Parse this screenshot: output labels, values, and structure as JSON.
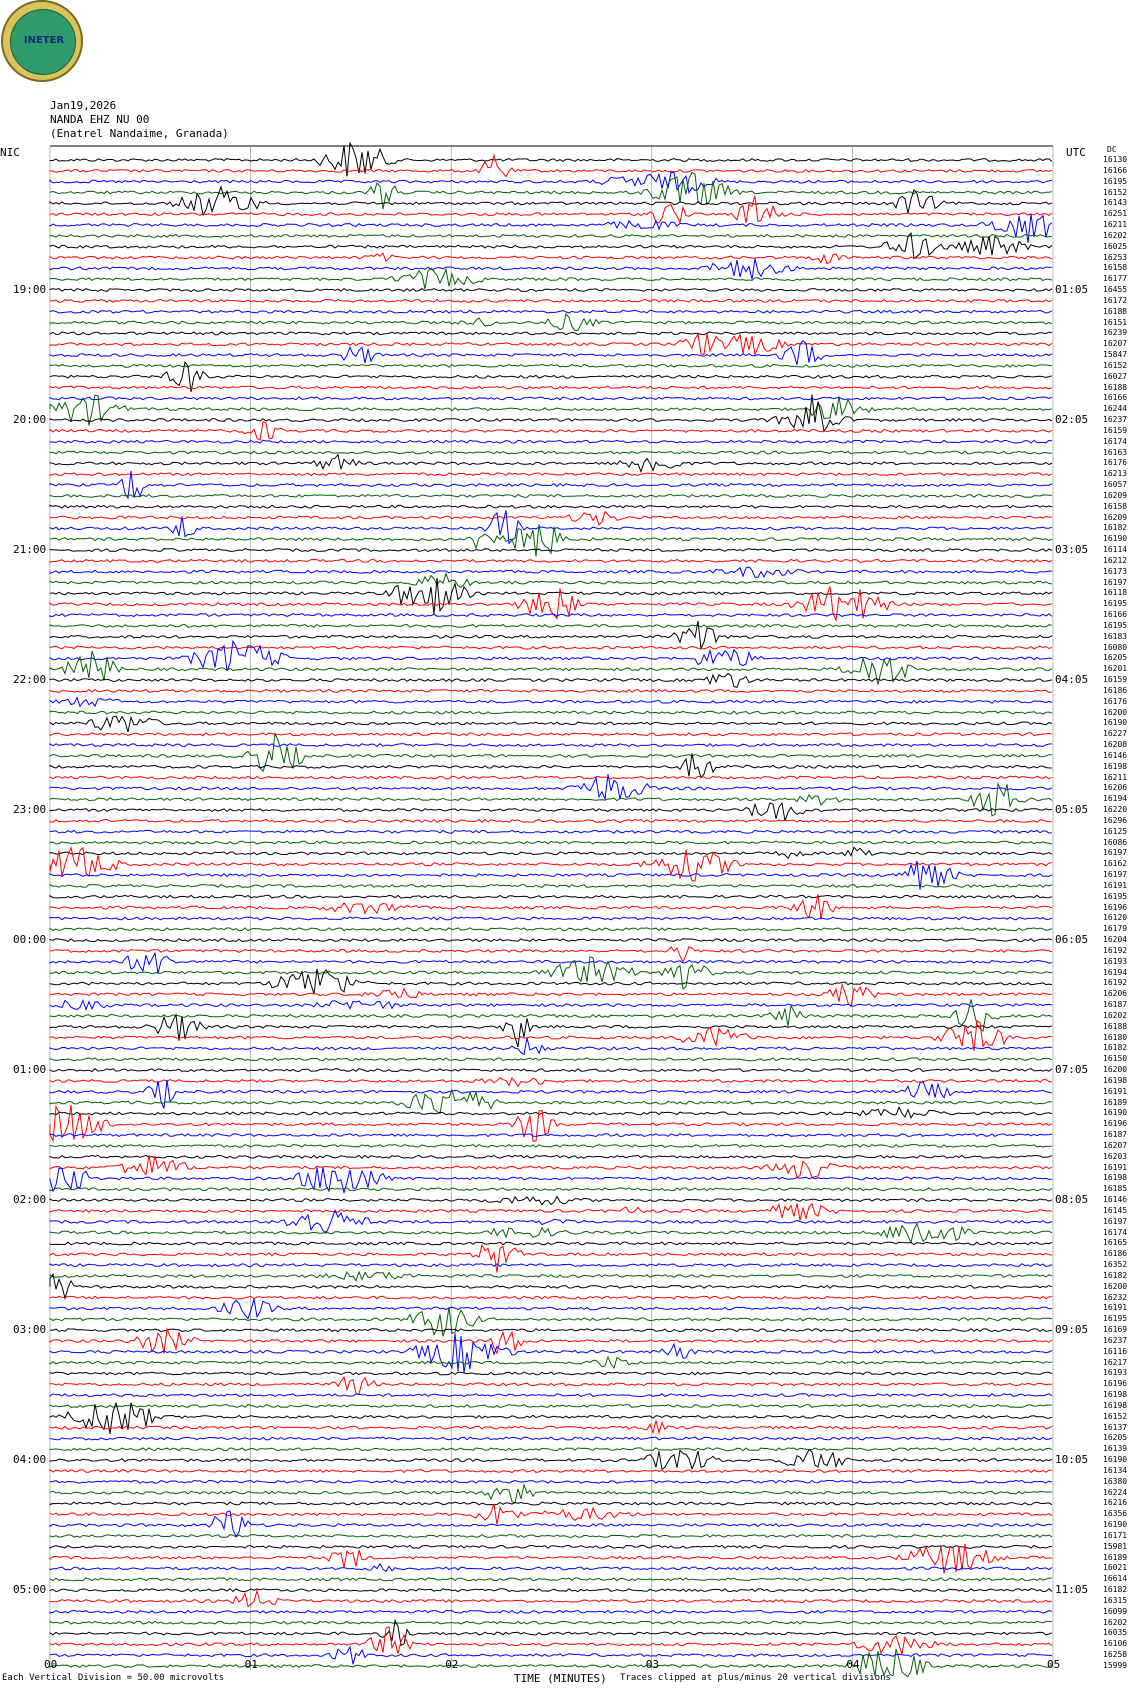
{
  "header": {
    "date": "Jan19,2026",
    "station": "NANDA EHZ NU 00",
    "location": "(Enatrel Nandaime, Granada)",
    "left_tz": "NIC",
    "right_tz": "UTC",
    "dc_label": "DC"
  },
  "logo": {
    "text": "INETER"
  },
  "left_times": [
    "19:00",
    "20:00",
    "21:00",
    "22:00",
    "23:00",
    "00:00",
    "01:00",
    "02:00",
    "03:00",
    "04:00",
    "05:00"
  ],
  "right_times": [
    "01:05",
    "02:05",
    "03:05",
    "04:05",
    "05:05",
    "06:05",
    "07:05",
    "08:05",
    "09:05",
    "10:05",
    "11:05"
  ],
  "dc_values": [
    "16130",
    "16166",
    "16195",
    "16152",
    "16143",
    "16251",
    "16211",
    "16202",
    "16025",
    "16253",
    "16158",
    "16177",
    "16455",
    "16172",
    "16188",
    "16151",
    "16239",
    "16207",
    "15847",
    "16152",
    "16027",
    "16188",
    "16166",
    "16244",
    "16237",
    "16159",
    "16174",
    "16163",
    "16176",
    "16213",
    "16057",
    "16209",
    "16158",
    "16209",
    "16182",
    "16190",
    "16114",
    "16212",
    "16173",
    "16197",
    "16118",
    "16195",
    "16166",
    "16195",
    "16183",
    "16080",
    "16205",
    "16201",
    "16159",
    "16186",
    "16176",
    "16200",
    "16190",
    "16227",
    "16208",
    "16146",
    "16198",
    "16211",
    "16206",
    "16194",
    "16220",
    "16296",
    "16125",
    "16086",
    "16197",
    "16162",
    "16197",
    "16191",
    "16195",
    "16196",
    "16120",
    "16179",
    "16204",
    "16192",
    "16193",
    "16194",
    "16192",
    "16206",
    "16187",
    "16202",
    "16188",
    "16180",
    "16182",
    "16150",
    "16200",
    "16198",
    "16191",
    "16189",
    "16190",
    "16196",
    "16187",
    "16207",
    "16203",
    "16191",
    "16198",
    "16185",
    "16146",
    "16145",
    "16197",
    "16174",
    "16165",
    "16186",
    "16352",
    "16182",
    "16200",
    "16232",
    "16191",
    "16195",
    "16169",
    "16237",
    "16116",
    "16217",
    "16193",
    "16196",
    "16198",
    "16198",
    "16152",
    "16137",
    "16205",
    "16139",
    "16190",
    "16134",
    "16380",
    "16224",
    "16216",
    "16356",
    "16190",
    "16171",
    "15981",
    "16189",
    "16021",
    "16614",
    "16182",
    "16315",
    "16099",
    "16202",
    "16035",
    "16106",
    "16258",
    "15999"
  ],
  "x_axis": {
    "ticks": [
      "00",
      "01",
      "02",
      "03",
      "04",
      "05"
    ],
    "label": "TIME (MINUTES)",
    "footnote_left": "Each Vertical Division = 50.00 microvolts",
    "footnote_right": "Traces clipped at plus/minus 20 vertical divisions"
  },
  "colors": {
    "black": "#000000",
    "red": "#ff0000",
    "blue": "#0000ff",
    "green": "#006400"
  }
}
